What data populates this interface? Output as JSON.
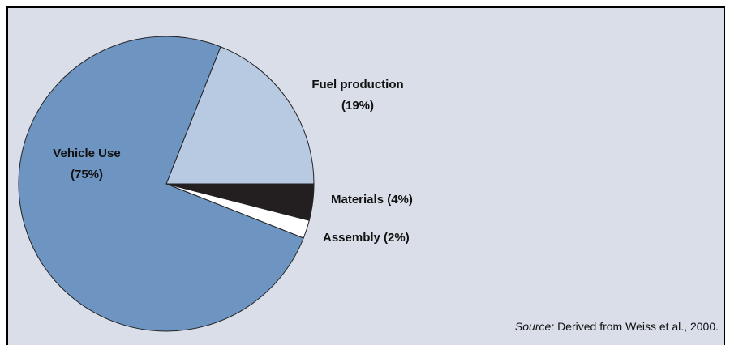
{
  "chart_data": {
    "type": "pie",
    "categories": [
      "Fuel production",
      "Materials",
      "Assembly",
      "Vehicle Use"
    ],
    "values": [
      19,
      4,
      2,
      75
    ],
    "value_labels": [
      "(19%)",
      "(4%)",
      "(2%)",
      "(75%)"
    ],
    "colors": [
      "#b8c9e2",
      "#231f20",
      "#ffffff",
      "#6e95c2"
    ],
    "source_label": "Source:",
    "source_text": "Derived from Weiss et al., 2000."
  }
}
